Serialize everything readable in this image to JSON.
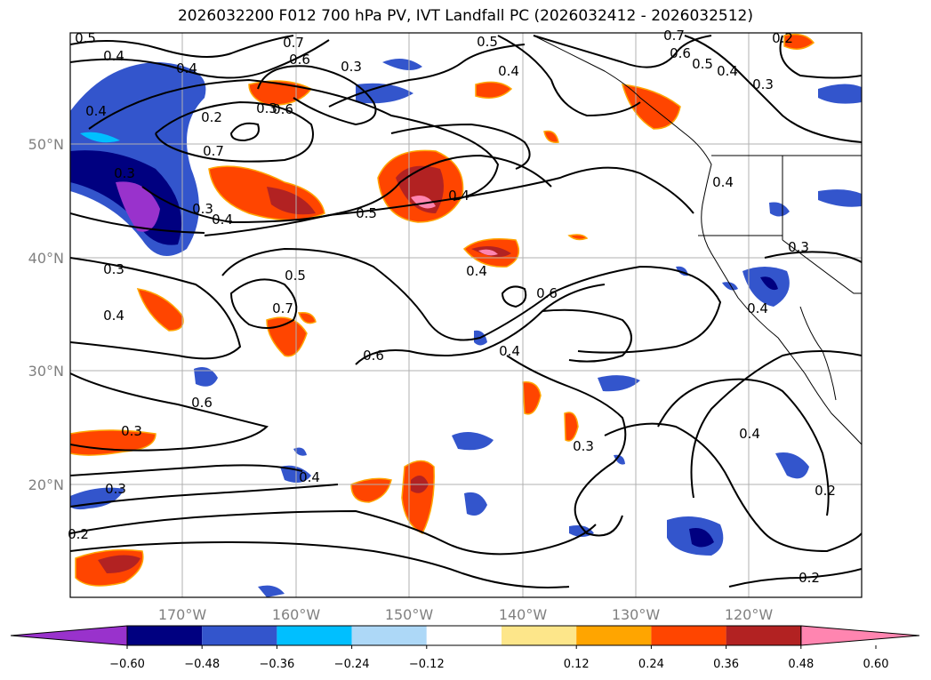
{
  "title": "2026032200 F012 700 hPa PV, IVT Landfall PC (2026032412 - 2026032512)",
  "map": {
    "lon_labels": [
      "170°W",
      "160°W",
      "150°W",
      "140°W",
      "130°W",
      "120°W"
    ],
    "lat_labels": [
      "50°N",
      "40°N",
      "30°N",
      "20°N"
    ],
    "contour_labels": [
      "0.5",
      "0.4",
      "0.4",
      "0.7",
      "0.6",
      "0.3",
      "0.6",
      "0.7",
      "0.3",
      "0.4",
      "0.5",
      "0.4",
      "0.7",
      "0.6",
      "0.5",
      "0.4",
      "0.3",
      "0.2",
      "0.3",
      "0.4",
      "0.3",
      "0.4",
      "0.4",
      "0.5",
      "0.4",
      "0.5",
      "0.6",
      "0.6",
      "0.4",
      "0.3",
      "0.4",
      "0.7",
      "0.6",
      "0.3",
      "0.3",
      "0.2",
      "0.4",
      "0.3",
      "0.4",
      "0.2",
      "0.2",
      "0.2",
      "0.3",
      "0.4"
    ],
    "shading_colors": {
      "neg_strong": "#000080",
      "neg_mid": "#3355cc",
      "neg_light": "#00bfff",
      "neg_faint": "#add8f7",
      "pos_faint": "#fde68a",
      "pos_light": "#ffa500",
      "pos_mid": "#ff4500",
      "pos_strong": "#b22222",
      "pos_max": "#ff85b0",
      "neg_max": "#9932cc"
    }
  },
  "colorbar": {
    "tick_labels": [
      "−0.60",
      "−0.48",
      "−0.36",
      "−0.24",
      "−0.12",
      "0.12",
      "0.24",
      "0.36",
      "0.48",
      "0.60"
    ],
    "colors": [
      "#9932cc",
      "#000080",
      "#3355cc",
      "#00bfff",
      "#add8f7",
      "#ffffff",
      "#fde68a",
      "#ffa500",
      "#ff4500",
      "#b22222",
      "#ff85b0"
    ]
  }
}
